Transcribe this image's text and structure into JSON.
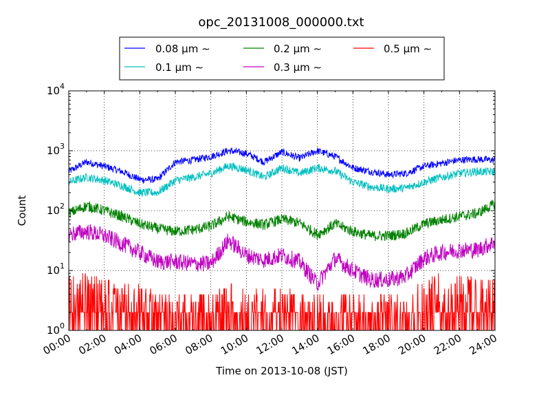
{
  "chart_data": {
    "type": "line",
    "title": "opc_20131008_000000.txt",
    "xlabel": "Time on 2013-10-08 (JST)",
    "ylabel": "Count",
    "yscale": "log",
    "xlim": [
      "00:00",
      "24:00"
    ],
    "ylim": [
      1,
      10000
    ],
    "x_ticks": [
      "00:00",
      "02:00",
      "04:00",
      "06:00",
      "08:00",
      "10:00",
      "12:00",
      "14:00",
      "16:00",
      "18:00",
      "20:00",
      "22:00",
      "24:00"
    ],
    "y_ticks": [
      {
        "base": "10",
        "exp": "0"
      },
      {
        "base": "10",
        "exp": "1"
      },
      {
        "base": "10",
        "exp": "2"
      },
      {
        "base": "10",
        "exp": "3"
      },
      {
        "base": "10",
        "exp": "4"
      }
    ],
    "grid": true,
    "legend": {
      "placement": "top-center, above plot",
      "columns": 3
    },
    "series": [
      {
        "name": "0.08 μm ∼",
        "color": "#0000ff",
        "x": [
          0,
          1,
          2,
          3,
          4,
          5,
          6,
          7,
          8,
          9,
          10,
          11,
          12,
          13,
          14,
          15,
          16,
          17,
          18,
          19,
          20,
          21,
          22,
          23,
          24
        ],
        "y": [
          450,
          650,
          550,
          450,
          330,
          330,
          650,
          700,
          800,
          1000,
          900,
          650,
          950,
          750,
          1000,
          800,
          520,
          450,
          400,
          420,
          550,
          620,
          700,
          720,
          700
        ]
      },
      {
        "name": "0.1 μm ∼",
        "color": "#00bfbf",
        "x": [
          0,
          1,
          2,
          3,
          4,
          5,
          6,
          7,
          8,
          9,
          10,
          11,
          12,
          13,
          14,
          15,
          16,
          17,
          18,
          19,
          20,
          21,
          22,
          23,
          24
        ],
        "y": [
          300,
          360,
          320,
          260,
          200,
          200,
          320,
          360,
          420,
          560,
          480,
          360,
          520,
          420,
          520,
          460,
          300,
          250,
          230,
          240,
          300,
          360,
          420,
          450,
          440
        ]
      },
      {
        "name": "0.2 μm ∼",
        "color": "#008000",
        "x": [
          0,
          1,
          2,
          3,
          4,
          5,
          6,
          7,
          8,
          9,
          10,
          11,
          12,
          13,
          14,
          15,
          16,
          17,
          18,
          19,
          20,
          21,
          22,
          23,
          24
        ],
        "y": [
          90,
          120,
          100,
          80,
          60,
          50,
          45,
          48,
          55,
          80,
          65,
          58,
          72,
          62,
          40,
          60,
          45,
          38,
          38,
          42,
          60,
          70,
          80,
          90,
          130
        ]
      },
      {
        "name": "0.3 μm ∼",
        "color": "#bf00bf",
        "x": [
          0,
          1,
          2,
          3,
          4,
          5,
          6,
          7,
          8,
          9,
          10,
          11,
          12,
          13,
          14,
          15,
          16,
          17,
          18,
          19,
          20,
          21,
          22,
          23,
          24
        ],
        "y": [
          40,
          45,
          38,
          28,
          20,
          14,
          14,
          13,
          13,
          32,
          18,
          15,
          18,
          14,
          6,
          16,
          10,
          7,
          7,
          8,
          16,
          20,
          22,
          22,
          30
        ]
      },
      {
        "name": "0.5 μm ∼",
        "color": "#ff0000",
        "x": [
          0,
          1,
          2,
          3,
          4,
          5,
          6,
          7,
          8,
          9,
          10,
          11,
          12,
          13,
          14,
          15,
          16,
          17,
          18,
          19,
          20,
          21,
          22,
          23,
          24
        ],
        "y": [
          3,
          3,
          2.5,
          2,
          2,
          1.5,
          1.5,
          1.5,
          1.5,
          2,
          1.8,
          1.5,
          1.8,
          1.5,
          1.3,
          1.5,
          1.4,
          1.3,
          1.3,
          1.5,
          2.5,
          3,
          3,
          2.5,
          2.5
        ]
      }
    ]
  }
}
